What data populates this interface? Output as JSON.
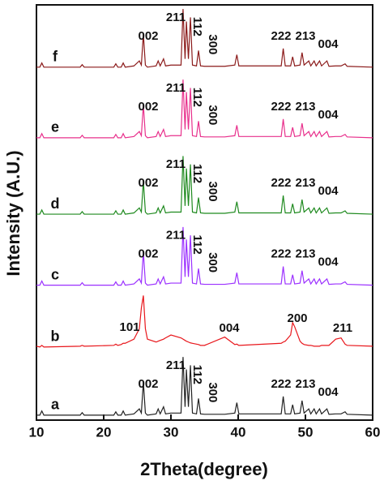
{
  "chart_data": {
    "type": "line",
    "xlabel": "2Theta(degree)",
    "ylabel": "Intensity (A.U.)",
    "xlim": [
      10,
      60
    ],
    "xticks": [
      10,
      20,
      30,
      40,
      50,
      60
    ],
    "ylim": [
      0,
      100
    ],
    "x": [
      10,
      10.5,
      10.8,
      11.1,
      16.5,
      16.8,
      17.1,
      21.5,
      21.8,
      22.1,
      22.6,
      22.9,
      23.2,
      24.5,
      25.3,
      25.6,
      25.9,
      26.2,
      26.5,
      27.8,
      28.1,
      28.4,
      28.9,
      29.2,
      30,
      31.5,
      31.8,
      32.1,
      32.3,
      32.6,
      32.9,
      33.2,
      33.8,
      34.1,
      34.4,
      35,
      38,
      39.5,
      39.8,
      40.1,
      46.4,
      46.7,
      47,
      47.8,
      48.1,
      48.4,
      49.2,
      49.5,
      49.8,
      50.5,
      50.8,
      51.3,
      51.6,
      52.1,
      52.4,
      53.2,
      53.5,
      54.5,
      55.3,
      55.9,
      56.2,
      60
    ],
    "series": [
      {
        "name": "a",
        "color": "#222222",
        "peaks": [
          "002",
          "211",
          "112",
          "300",
          "222",
          "213",
          "004"
        ],
        "values": [
          1.2,
          1.2,
          2.2,
          1.2,
          1.2,
          1.8,
          1.2,
          1.2,
          2,
          1.2,
          1.2,
          2.2,
          1.2,
          1.5,
          2.7,
          1.7,
          9.2,
          1.7,
          1.2,
          1.5,
          2.7,
          1.5,
          3.2,
          1.5,
          1.7,
          1.7,
          15.2,
          3.2,
          12.2,
          3.2,
          13.2,
          1.7,
          1.5,
          5.2,
          1.5,
          1.4,
          1.4,
          1.7,
          4.2,
          1.5,
          1.5,
          5.7,
          1.5,
          1.5,
          3.7,
          1.5,
          1.7,
          4.7,
          1.7,
          2.7,
          1.5,
          2.7,
          1.5,
          2.7,
          1.5,
          2.7,
          1.4,
          1.5,
          1.5,
          2,
          1.4,
          1.2
        ]
      },
      {
        "name": "b",
        "color": "#e8161b",
        "peaks": [
          "101",
          "004",
          "200",
          "211"
        ],
        "values": [
          17.8,
          17.6,
          18,
          17.6,
          17.8,
          18,
          17.8,
          18,
          18.3,
          18,
          18.2,
          18.5,
          18.5,
          19.5,
          22,
          27,
          30,
          22,
          19.5,
          18.8,
          19,
          19.2,
          19.5,
          19.8,
          20.5,
          19.8,
          19.5,
          19.2,
          19,
          18.8,
          18.6,
          18.5,
          18.3,
          18.2,
          18,
          18,
          20,
          18.2,
          18.3,
          18,
          18.5,
          18.8,
          19,
          20.5,
          23.5,
          22.5,
          19,
          18.5,
          18.2,
          18,
          18,
          17.8,
          17.8,
          17.8,
          18,
          18,
          18,
          19.5,
          19.8,
          18.3,
          18,
          17.8
        ]
      },
      {
        "name": "c",
        "color": "#9b30ff",
        "peaks": [
          "002",
          "211",
          "112",
          "300",
          "222",
          "213",
          "004"
        ],
        "values": [
          32.5,
          32.5,
          33.5,
          32.5,
          32.5,
          33.1,
          32.5,
          32.5,
          33.3,
          32.5,
          32.5,
          33.5,
          32.5,
          32.8,
          34,
          33,
          40.5,
          33,
          32.5,
          32.8,
          34,
          32.8,
          34.5,
          32.8,
          33,
          33,
          46.5,
          34.5,
          43.5,
          34.5,
          44.5,
          33,
          32.8,
          36.5,
          32.8,
          32.7,
          32.7,
          33,
          35.5,
          32.8,
          32.8,
          37,
          32.8,
          32.8,
          35,
          32.8,
          33,
          36,
          33,
          34,
          32.8,
          34,
          32.8,
          34,
          32.8,
          34,
          32.7,
          32.8,
          32.8,
          33.3,
          32.7,
          32.5
        ]
      },
      {
        "name": "d",
        "color": "#1f8a1f",
        "peaks": [
          "002",
          "211",
          "112",
          "300",
          "222",
          "213",
          "004"
        ],
        "values": [
          49.6,
          49.6,
          50.6,
          49.6,
          49.6,
          50.2,
          49.6,
          49.6,
          50.4,
          49.6,
          49.6,
          50.6,
          49.6,
          49.9,
          51.1,
          50.1,
          57.6,
          50.1,
          49.6,
          49.9,
          51.1,
          49.9,
          51.6,
          49.9,
          50.1,
          50.1,
          63.6,
          51.6,
          60.6,
          51.6,
          61.6,
          50.1,
          49.9,
          53.6,
          49.9,
          49.8,
          49.8,
          50.1,
          52.6,
          49.9,
          49.9,
          54.1,
          49.9,
          49.9,
          52.1,
          49.9,
          50.1,
          53.1,
          50.1,
          51.1,
          49.9,
          51.1,
          49.9,
          51.1,
          49.9,
          51.1,
          49.8,
          49.9,
          49.9,
          50.4,
          49.8,
          49.6
        ]
      },
      {
        "name": "e",
        "color": "#e8308c",
        "peaks": [
          "002",
          "211",
          "112",
          "300",
          "222",
          "213",
          "004"
        ],
        "values": [
          68,
          68,
          69,
          68,
          68,
          68.6,
          68,
          68,
          68.8,
          68,
          68,
          69,
          68,
          68.3,
          69.5,
          68.5,
          76,
          68.5,
          68,
          68.3,
          69.5,
          68.3,
          70,
          68.3,
          68.5,
          68.5,
          82,
          70,
          79,
          70,
          80,
          68.5,
          68.3,
          72,
          68.3,
          68.2,
          68.2,
          68.5,
          71,
          68.3,
          68.3,
          72.5,
          68.3,
          68.3,
          70.5,
          68.3,
          68.5,
          71.5,
          68.5,
          69.5,
          68.3,
          69.5,
          68.3,
          69.5,
          68.3,
          69.5,
          68.2,
          68.3,
          68.3,
          68.8,
          68.2,
          68
        ]
      },
      {
        "name": "f",
        "color": "#8b1a1a",
        "peaks": [
          "002",
          "211",
          "112",
          "300",
          "222",
          "213",
          "004"
        ],
        "values": [
          85,
          85,
          86,
          85,
          85,
          85.6,
          85,
          85,
          85.8,
          85,
          85,
          86,
          85,
          85.3,
          86.5,
          85.5,
          93,
          85.5,
          85,
          85.3,
          86.5,
          85.3,
          87,
          85.3,
          85.5,
          85.5,
          99,
          87,
          96,
          87,
          97,
          85.5,
          85.3,
          89,
          85.3,
          85.2,
          85.2,
          85.5,
          88,
          85.3,
          85.3,
          89.5,
          85.3,
          85.3,
          87.5,
          85.3,
          85.5,
          88.5,
          85.5,
          86.5,
          85.3,
          86.5,
          85.3,
          86.5,
          85.3,
          86.5,
          85.2,
          85.3,
          85.3,
          85.8,
          85.2,
          85
        ]
      }
    ]
  }
}
